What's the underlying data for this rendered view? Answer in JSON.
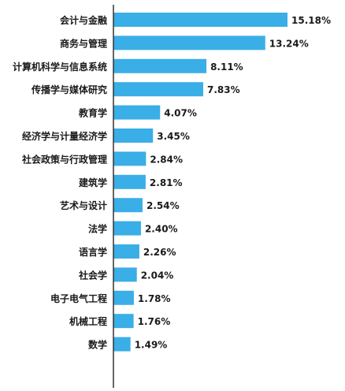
{
  "chart_data": {
    "type": "bar",
    "orientation": "horizontal",
    "categories": [
      "会计与金融",
      "商务与管理",
      "计算机科学与信息系统",
      "传播学与媒体研究",
      "教育学",
      "经济学与计量经济学",
      "社会政策与行政管理",
      "建筑学",
      "艺术与设计",
      "法学",
      "语言学",
      "社会学",
      "电子电气工程",
      "机械工程",
      "数学"
    ],
    "values": [
      15.18,
      13.24,
      8.11,
      7.83,
      4.07,
      3.45,
      2.84,
      2.81,
      2.54,
      2.4,
      2.26,
      2.04,
      1.78,
      1.76,
      1.49
    ],
    "value_labels": [
      "15.18%",
      "13.24%",
      "8.11%",
      "7.83%",
      "4.07%",
      "3.45%",
      "2.84%",
      "2.81%",
      "2.54%",
      "2.40%",
      "2.26%",
      "2.04%",
      "1.78%",
      "1.76%",
      "1.49%"
    ],
    "unit": "%",
    "title": "",
    "xlabel": "",
    "ylabel": "",
    "xlim": [
      0,
      15.18
    ],
    "grid": false,
    "legend": "none",
    "colors": {
      "bar": "#3aaee6",
      "axis": "#333333",
      "text": "#1a1a1a"
    }
  }
}
